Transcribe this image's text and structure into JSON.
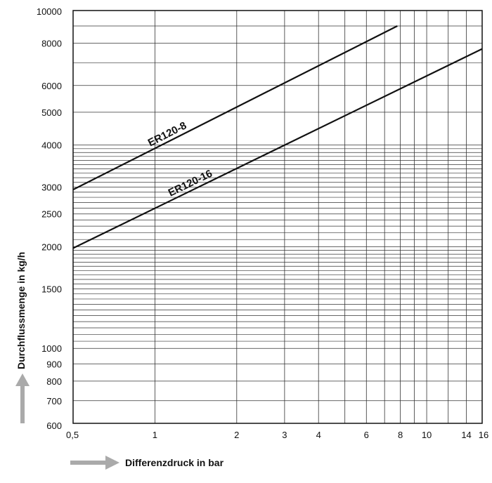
{
  "chart_data": {
    "type": "line",
    "xscale": "log",
    "yscale": "log",
    "xlim": [
      0.5,
      16
    ],
    "ylim": [
      600,
      10000
    ],
    "grid": true,
    "xlabel": "Differenzdruck in bar",
    "ylabel": "Durchflussmenge in kg/h",
    "x_ticks": [
      "0,5",
      "1",
      "2",
      "3",
      "4",
      "6",
      "8",
      "10",
      "14",
      "16"
    ],
    "x_tick_values": [
      0.5,
      1,
      2,
      3,
      4,
      6,
      8,
      10,
      14,
      16
    ],
    "y_ticks": [
      "10000",
      "8000",
      "6000",
      "5000",
      "4000",
      "3000",
      "2500",
      "2000",
      "1500",
      "1000",
      "900",
      "800",
      "700",
      "600"
    ],
    "y_tick_values": [
      10000,
      8000,
      6000,
      5000,
      4000,
      3000,
      2500,
      2000,
      1500,
      1000,
      900,
      800,
      700,
      600
    ],
    "series": [
      {
        "name": "ER120-8",
        "x": [
          0.5,
          7.8
        ],
        "y": [
          2950,
          9000
        ]
      },
      {
        "name": "ER120-16",
        "x": [
          0.5,
          16
        ],
        "y": [
          1980,
          7700
        ]
      }
    ]
  }
}
